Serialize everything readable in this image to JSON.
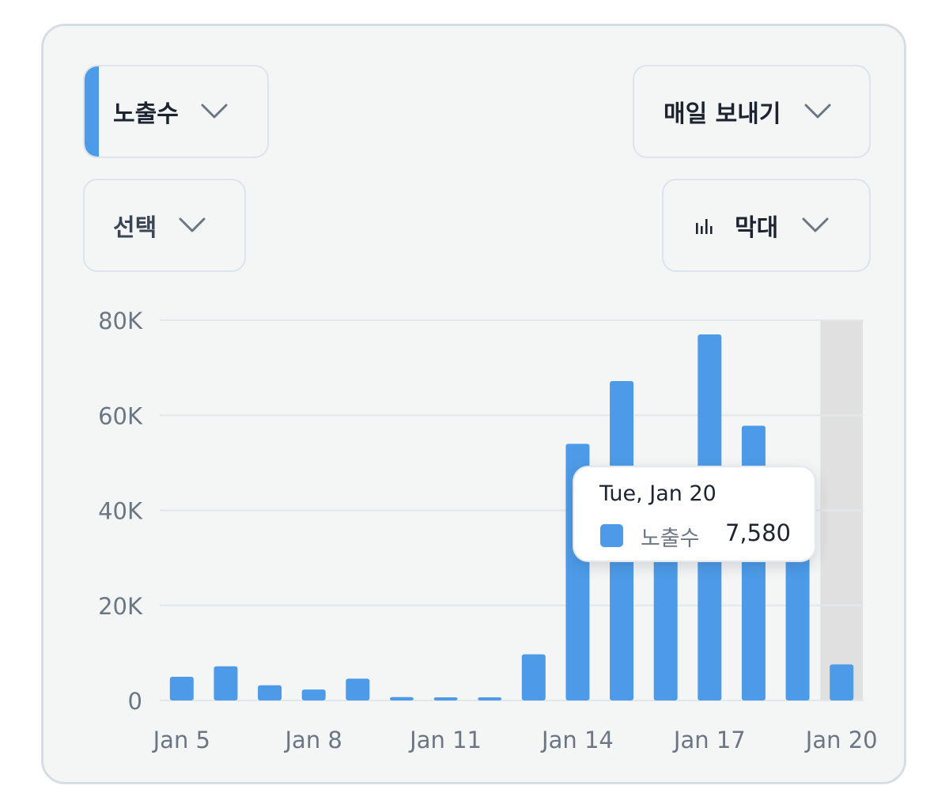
{
  "colors": {
    "accent": "#4d9be8",
    "bar": "#4d9be8",
    "highlight_band": "#e0e0e0",
    "gridline": "#e2e7ec",
    "axis_text": "#6b7684",
    "card_bg": "#f4f6f6"
  },
  "controls": {
    "metric": {
      "label": "노출수",
      "icon": "chevron-down-icon"
    },
    "frequency": {
      "label": "매일 보내기",
      "icon": "chevron-down-icon"
    },
    "compare": {
      "label": "선택",
      "icon": "chevron-down-icon"
    },
    "chart_type": {
      "label": "막대",
      "icon": "bar-chart-icon"
    }
  },
  "tooltip": {
    "date": "Tue, Jan 20",
    "series": "노출수",
    "value": "7,580"
  },
  "chart_data": {
    "type": "bar",
    "categories": [
      "Jan 5",
      "Jan 6",
      "Jan 7",
      "Jan 8",
      "Jan 9",
      "Jan 10",
      "Jan 11",
      "Jan 12",
      "Jan 13",
      "Jan 14",
      "Jan 15",
      "Jan 16",
      "Jan 17",
      "Jan 18",
      "Jan 19",
      "Jan 20"
    ],
    "x_tick_labels": [
      "Jan 5",
      "Jan 8",
      "Jan 11",
      "Jan 14",
      "Jan 17",
      "Jan 20"
    ],
    "y_tick_labels": [
      "0",
      "20K",
      "40K",
      "60K",
      "80K"
    ],
    "y_ticks": [
      0,
      20000,
      40000,
      60000,
      80000
    ],
    "ylim": [
      0,
      80000
    ],
    "series": [
      {
        "name": "노출수",
        "values": [
          5000,
          7200,
          3200,
          2300,
          4600,
          700,
          500,
          400,
          9700,
          54000,
          67200,
          49000,
          77000,
          57800,
          43000,
          7580
        ]
      }
    ],
    "highlighted_category": "Jan 20",
    "grid": true,
    "title": "",
    "xlabel": "",
    "ylabel": ""
  }
}
